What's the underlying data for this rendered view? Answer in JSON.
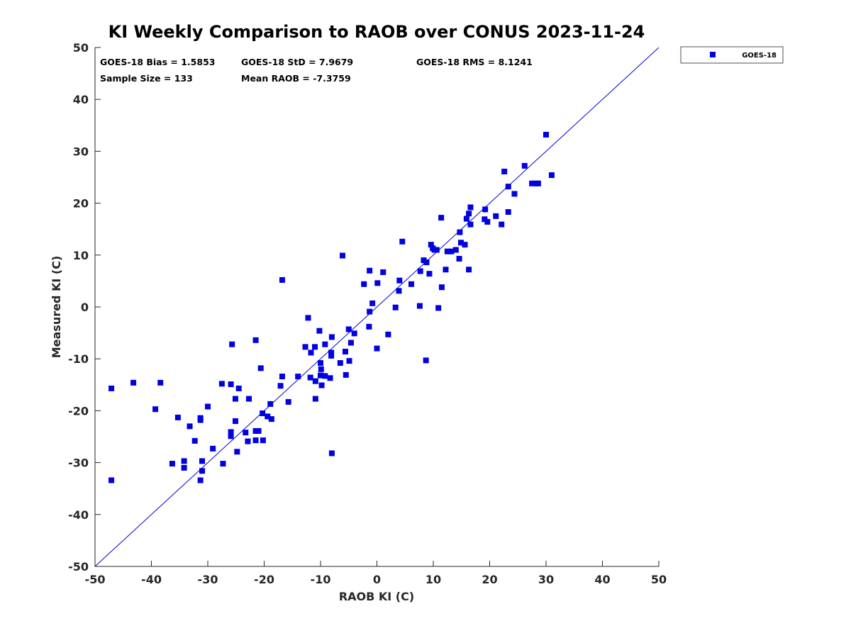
{
  "chart_data": {
    "type": "scatter",
    "title": "KI Weekly Comparison to RAOB over CONUS 2023-11-24",
    "xlabel": "RAOB KI (C)",
    "ylabel": "Measured KI (C)",
    "xlim": [
      -50,
      50
    ],
    "ylim": [
      -50,
      50
    ],
    "x_ticks": [
      -50,
      -40,
      -30,
      -20,
      -10,
      0,
      10,
      20,
      30,
      40,
      50
    ],
    "y_ticks": [
      -50,
      -40,
      -30,
      -20,
      -10,
      0,
      10,
      20,
      30,
      40,
      50
    ],
    "x_tick_labels": [
      "-50",
      "-40",
      "-30",
      "-20",
      "-10",
      "0",
      "10",
      "20",
      "30",
      "40",
      "50"
    ],
    "y_tick_labels": [
      "-50",
      "-40",
      "-30",
      "-20",
      "-10",
      "0",
      "10",
      "20",
      "30",
      "40",
      "50"
    ],
    "grid": false,
    "legend_position": "outside-top-right",
    "reference_line": {
      "from": [
        -50,
        -50
      ],
      "to": [
        50,
        50
      ],
      "color": "#0000e0"
    },
    "stats": {
      "bias": "GOES-18 Bias = 1.5853",
      "std": "GOES-18 StD = 7.9679",
      "rms": "GOES-18 RMS = 8.1241",
      "sample_size": "Sample Size = 133",
      "mean_raob": "Mean RAOB = -7.3759"
    },
    "series": [
      {
        "name": "GOES-18",
        "color": "#0000e0",
        "marker": "square",
        "points": [
          [
            -47.1,
            -15.7
          ],
          [
            -47.1,
            -33.4
          ],
          [
            -43.2,
            -14.6
          ],
          [
            -39.3,
            -19.7
          ],
          [
            -38.4,
            -14.6
          ],
          [
            -35.3,
            -21.3
          ],
          [
            -34.2,
            -29.7
          ],
          [
            -34.2,
            -31.0
          ],
          [
            -33.2,
            -23.0
          ],
          [
            -32.3,
            -25.8
          ],
          [
            -31.3,
            -21.4
          ],
          [
            -31.3,
            -21.8
          ],
          [
            -31.3,
            -33.4
          ],
          [
            -31.0,
            -29.7
          ],
          [
            -31.0,
            -31.6
          ],
          [
            -30.0,
            -19.2
          ],
          [
            -29.1,
            -27.3
          ],
          [
            -36.3,
            -30.2
          ],
          [
            -27.5,
            -14.8
          ],
          [
            -27.3,
            -30.2
          ],
          [
            -25.9,
            -14.9
          ],
          [
            -25.9,
            -24.1
          ],
          [
            -25.9,
            -24.9
          ],
          [
            -25.7,
            -7.2
          ],
          [
            -25.1,
            -17.7
          ],
          [
            -25.1,
            -22.0
          ],
          [
            -24.8,
            -27.9
          ],
          [
            -24.5,
            -15.7
          ],
          [
            -23.3,
            -24.2
          ],
          [
            -22.9,
            -25.9
          ],
          [
            -22.7,
            -17.7
          ],
          [
            -21.5,
            -6.4
          ],
          [
            -21.5,
            -23.9
          ],
          [
            -21.5,
            -25.7
          ],
          [
            -21.0,
            -23.9
          ],
          [
            -20.6,
            -11.8
          ],
          [
            -20.3,
            -20.5
          ],
          [
            -20.2,
            -25.7
          ],
          [
            -19.4,
            -21.1
          ],
          [
            -18.9,
            -18.7
          ],
          [
            -18.7,
            -21.6
          ],
          [
            -17.1,
            -15.2
          ],
          [
            -16.8,
            -13.4
          ],
          [
            -16.8,
            5.2
          ],
          [
            -15.7,
            -18.3
          ],
          [
            -14.0,
            -13.4
          ],
          [
            -12.7,
            -7.7
          ],
          [
            -12.2,
            -2.1
          ],
          [
            -11.8,
            -13.6
          ],
          [
            -11.7,
            -8.8
          ],
          [
            -11.0,
            -7.7
          ],
          [
            -10.9,
            -17.7
          ],
          [
            -10.9,
            -14.3
          ],
          [
            -10.2,
            -4.6
          ],
          [
            -10.0,
            -13.2
          ],
          [
            -10.0,
            -10.8
          ],
          [
            -9.9,
            -12.0
          ],
          [
            -9.8,
            -15.1
          ],
          [
            -9.2,
            -7.2
          ],
          [
            -9.2,
            -13.3
          ],
          [
            -8.3,
            -13.7
          ],
          [
            -8.1,
            -8.8
          ],
          [
            -8.1,
            -9.4
          ],
          [
            -8.0,
            -5.8
          ],
          [
            -8.0,
            -28.2
          ],
          [
            -6.5,
            -10.8
          ],
          [
            -6.1,
            9.9
          ],
          [
            -5.6,
            -8.6
          ],
          [
            -5.5,
            -13.1
          ],
          [
            -5.0,
            -4.3
          ],
          [
            -4.9,
            -10.4
          ],
          [
            -4.6,
            -6.9
          ],
          [
            -4.0,
            -5.1
          ],
          [
            -2.3,
            4.4
          ],
          [
            -1.4,
            -3.8
          ],
          [
            -1.3,
            -0.9
          ],
          [
            -1.3,
            7.0
          ],
          [
            -0.8,
            0.7
          ],
          [
            0.0,
            -8.0
          ],
          [
            0.1,
            4.6
          ],
          [
            1.1,
            6.7
          ],
          [
            2.0,
            -5.3
          ],
          [
            3.3,
            -0.1
          ],
          [
            3.9,
            3.1
          ],
          [
            4.0,
            5.1
          ],
          [
            4.5,
            12.6
          ],
          [
            6.1,
            4.4
          ],
          [
            7.6,
            0.2
          ],
          [
            7.7,
            6.9
          ],
          [
            8.3,
            9.0
          ],
          [
            8.7,
            -10.3
          ],
          [
            8.8,
            8.6
          ],
          [
            9.3,
            6.4
          ],
          [
            9.6,
            12.0
          ],
          [
            9.9,
            11.3
          ],
          [
            10.2,
            11.0
          ],
          [
            10.6,
            11.0
          ],
          [
            10.9,
            -0.2
          ],
          [
            11.4,
            17.2
          ],
          [
            11.5,
            3.8
          ],
          [
            12.2,
            7.2
          ],
          [
            12.5,
            10.7
          ],
          [
            13.2,
            10.7
          ],
          [
            14.0,
            11.0
          ],
          [
            14.6,
            9.3
          ],
          [
            14.7,
            14.4
          ],
          [
            14.9,
            12.4
          ],
          [
            15.6,
            12.0
          ],
          [
            15.9,
            17.0
          ],
          [
            16.3,
            7.2
          ],
          [
            16.3,
            18.0
          ],
          [
            16.6,
            19.2
          ],
          [
            16.6,
            15.9
          ],
          [
            19.1,
            16.9
          ],
          [
            19.2,
            18.8
          ],
          [
            19.6,
            16.4
          ],
          [
            21.1,
            17.5
          ],
          [
            22.1,
            15.9
          ],
          [
            22.6,
            26.1
          ],
          [
            23.3,
            23.2
          ],
          [
            23.3,
            18.3
          ],
          [
            24.4,
            21.8
          ],
          [
            26.2,
            27.2
          ],
          [
            27.5,
            23.8
          ],
          [
            28.3,
            23.8
          ],
          [
            28.6,
            23.8
          ],
          [
            30.0,
            33.2
          ],
          [
            31.0,
            25.4
          ]
        ]
      }
    ]
  }
}
